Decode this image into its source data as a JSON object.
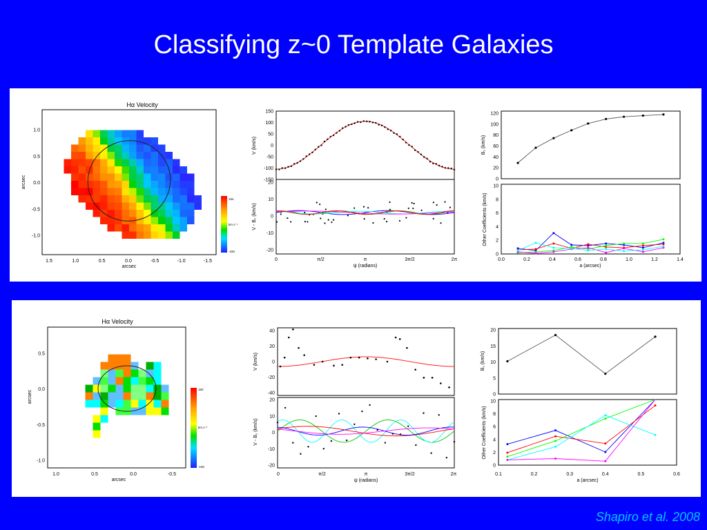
{
  "slide": {
    "title": "Classifying z~0 Template Galaxies",
    "credit": "Shapiro et al. 2008",
    "colors": {
      "background": "#0000ff",
      "title": "#ffffff",
      "credit": "#00c8ff"
    }
  },
  "panels": [
    {
      "map": {
        "title": "Hα Velocity",
        "xlabel": "arcsec",
        "ylabel": "arcsec",
        "xticks": [
          "1.5",
          "1.0",
          "0.5",
          "0.0",
          "-0.5",
          "-1.0",
          "-1.5"
        ],
        "yticks": [
          "1.0",
          "0.5",
          "0.0",
          "-0.5",
          "-1.0"
        ],
        "colorbar": {
          "max": "154",
          "unit": "km s⁻¹",
          "min": "-150"
        }
      },
      "vfit": {
        "ylabel_top": "V (km/s)",
        "ylabel_bottom": "V - B₁ (km/s)",
        "xlabel": "ψ (radians)",
        "yticks_top": [
          "150",
          "100",
          "50",
          "0",
          "-50",
          "-100",
          "-150"
        ],
        "yticks_bottom": [
          "20",
          "10",
          "0",
          "-10",
          "-20"
        ],
        "xticks": [
          "0",
          "π/2",
          "π",
          "3π/2",
          "2π"
        ]
      },
      "coeffs": {
        "ylabel_top": "B₁ (km/s)",
        "ylabel_bottom": "Other Coefficients (km/s)",
        "xlabel": "a (arcsec)",
        "yticks_top": [
          "120",
          "100",
          "80",
          "60",
          "40",
          "20",
          "0"
        ],
        "yticks_bottom": [
          "10",
          "8",
          "6",
          "4",
          "2",
          "0"
        ],
        "xticks": [
          "0.0",
          "0.2",
          "0.4",
          "0.6",
          "0.8",
          "1.0",
          "1.2",
          "1.4"
        ]
      }
    },
    {
      "map": {
        "title": "Hα Velocity",
        "xlabel": "arcsec",
        "ylabel": "arcsec",
        "xticks": [
          "1.0",
          "0.5",
          "0.0",
          "-0.5"
        ],
        "yticks": [
          "0.5",
          "0.0",
          "-0.5",
          "-1.0"
        ],
        "colorbar": {
          "max": "150",
          "unit": "km s⁻¹",
          "min": "-150"
        }
      },
      "vfit": {
        "ylabel_top": "V (km/s)",
        "ylabel_bottom": "V - B₁ (km/s)",
        "xlabel": "ψ (radians)",
        "yticks_top": [
          "40",
          "20",
          "0",
          "-20",
          "-40"
        ],
        "yticks_bottom": [
          "20",
          "10",
          "0",
          "-10",
          "-20"
        ],
        "xticks": [
          "0",
          "π/2",
          "π",
          "3π/2",
          "2π"
        ]
      },
      "coeffs": {
        "ylabel_top": "B₁ (km/s)",
        "ylabel_bottom": "Other Coefficients (km/s)",
        "xlabel": "a (arcsec)",
        "yticks_top": [
          "20",
          "15",
          "10",
          "5",
          "0"
        ],
        "yticks_bottom": [
          "10",
          "8",
          "6",
          "4",
          "2",
          "0"
        ],
        "xticks": [
          "0.1",
          "0.2",
          "0.3",
          "0.4",
          "0.5",
          "0.6"
        ]
      }
    }
  ],
  "chart_data": [
    {
      "type": "scatter",
      "panel": 0,
      "plot": "B1 vs a",
      "x": [
        0.13,
        0.27,
        0.41,
        0.55,
        0.68,
        0.82,
        0.96,
        1.11,
        1.27
      ],
      "y": [
        28,
        55,
        72,
        86,
        98,
        106,
        110,
        112,
        114
      ],
      "xlim": [
        0,
        1.4
      ],
      "ylim": [
        0,
        120
      ]
    },
    {
      "type": "line",
      "panel": 0,
      "plot": "other coefficients vs a",
      "x": [
        0.13,
        0.27,
        0.41,
        0.55,
        0.68,
        0.82,
        0.96,
        1.11,
        1.27
      ],
      "series": [
        {
          "color": "#0000ff",
          "values": [
            0.8,
            0.5,
            3.0,
            1.3,
            1.2,
            1.5,
            1.3,
            0.9,
            1.6
          ]
        },
        {
          "color": "#ff0000",
          "values": [
            0.6,
            0.7,
            1.5,
            0.8,
            1.4,
            1.0,
            0.9,
            1.2,
            1.4
          ]
        },
        {
          "color": "#00ff00",
          "values": [
            0.2,
            0.3,
            0.5,
            1.0,
            0.7,
            1.2,
            1.5,
            1.5,
            2.1
          ]
        },
        {
          "color": "#ff00ff",
          "values": [
            0.3,
            0.1,
            0.3,
            0.7,
            0.9,
            0.2,
            0.8,
            0.3,
            0.9
          ]
        },
        {
          "color": "#00ffff",
          "values": [
            0.5,
            1.6,
            0.9,
            0.8,
            0.5,
            0.7,
            0.4,
            0.6,
            1.1
          ]
        }
      ],
      "xlim": [
        0,
        1.4
      ],
      "ylim": [
        0,
        10
      ]
    },
    {
      "type": "scatter",
      "panel": 1,
      "plot": "B1 vs a",
      "x": [
        0.125,
        0.26,
        0.4,
        0.54
      ],
      "y": [
        10,
        18,
        6.2,
        17.5
      ],
      "xlim": [
        0.1,
        0.6
      ],
      "ylim": [
        0,
        20
      ]
    },
    {
      "type": "line",
      "panel": 1,
      "plot": "other coefficients vs a",
      "x": [
        0.125,
        0.26,
        0.4,
        0.54
      ],
      "series": [
        {
          "color": "#0000ff",
          "values": [
            3.2,
            5.3,
            2.0,
            12
          ]
        },
        {
          "color": "#ff0000",
          "values": [
            1.9,
            4.4,
            3.3,
            9.1
          ]
        },
        {
          "color": "#00ff00",
          "values": [
            1.3,
            3.7,
            7.1,
            12
          ]
        },
        {
          "color": "#00ffff",
          "values": [
            0.8,
            2.8,
            7.6,
            4.6
          ]
        },
        {
          "color": "#ff00ff",
          "values": [
            0.8,
            1.0,
            0.6,
            12
          ]
        }
      ],
      "xlim": [
        0.1,
        0.6
      ],
      "ylim": [
        0,
        10
      ]
    }
  ]
}
